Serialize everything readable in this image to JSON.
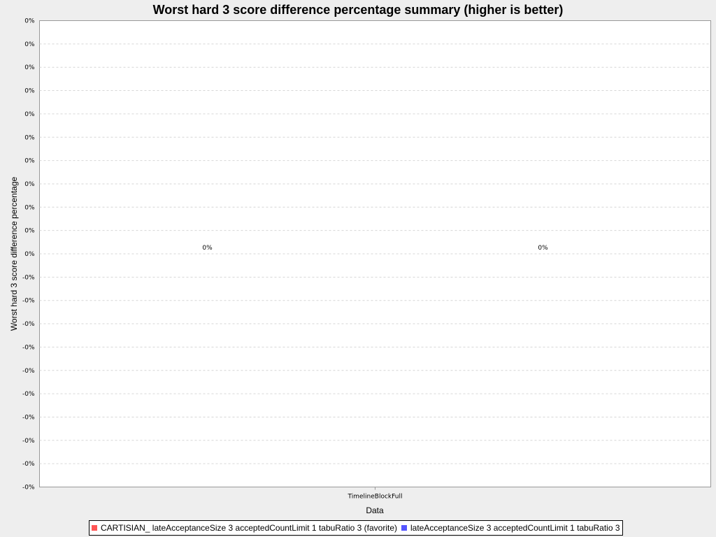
{
  "chart_data": {
    "type": "bar",
    "title": "Worst hard 3 score difference percentage summary (higher is better)",
    "xlabel": "Data",
    "ylabel": "Worst hard 3 score difference percentage",
    "categories": [
      "TimelineBlockFull"
    ],
    "y_tick_labels": [
      "0%",
      "0%",
      "0%",
      "0%",
      "0%",
      "0%",
      "0%",
      "0%",
      "0%",
      "0%",
      "0%",
      "-0%",
      "-0%",
      "-0%",
      "-0%",
      "-0%",
      "-0%",
      "-0%",
      "-0%",
      "-0%",
      "-0%"
    ],
    "series": [
      {
        "name": "CARTISIAN_ lateAcceptanceSize 3 acceptedCountLimit 1 tabuRatio 3 (favorite)",
        "values": [
          0
        ],
        "labels": [
          "0%"
        ],
        "color": "#ff5555"
      },
      {
        "name": "lateAcceptanceSize 3 acceptedCountLimit 1 tabuRatio 3",
        "values": [
          0
        ],
        "labels": [
          "0%"
        ],
        "color": "#5555ff"
      }
    ],
    "grid": true,
    "legend_position": "bottom"
  }
}
